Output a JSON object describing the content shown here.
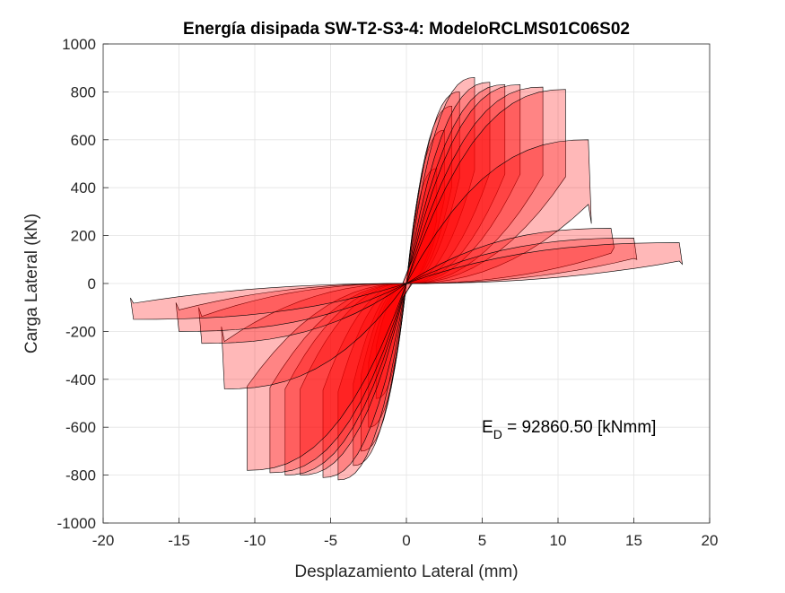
{
  "chart_data": {
    "type": "area",
    "title": "Energía disipada SW-T2-S3-4: ModeloRCLMS01C06S02",
    "xlabel": "Desplazamiento Lateral (mm)",
    "ylabel": "Carga Lateral (kN)",
    "xlim": [
      -20,
      20
    ],
    "ylim": [
      -1000,
      1000
    ],
    "xticks": [
      -20,
      -15,
      -10,
      -5,
      0,
      5,
      10,
      15,
      20
    ],
    "yticks": [
      -1000,
      -800,
      -600,
      -400,
      -200,
      0,
      200,
      400,
      600,
      800,
      1000
    ],
    "grid": true,
    "annotation": {
      "text_main": "E",
      "text_sub": "D",
      "text_rest": " = 92860.50 [kNmm]",
      "x": 5,
      "y": -600
    },
    "colors": {
      "fill": "#ff0000",
      "stroke": "#000000"
    },
    "series": [
      {
        "xmax": 2.0,
        "ymax": 480,
        "xmin": -2.0,
        "ymin": -480,
        "ptail": 0,
        "ntail": 0
      },
      {
        "xmax": 2.5,
        "ymax": 640,
        "xmin": -2.5,
        "ymin": -600,
        "ptail": 0,
        "ntail": 0
      },
      {
        "xmax": 3.0,
        "ymax": 740,
        "xmin": -3.0,
        "ymin": -700,
        "ptail": 0,
        "ntail": 0
      },
      {
        "xmax": 3.5,
        "ymax": 800,
        "xmin": -3.5,
        "ymin": -760,
        "ptail": 0,
        "ntail": 0
      },
      {
        "xmax": 4.5,
        "ymax": 860,
        "xmin": -4.5,
        "ymin": -820,
        "ptail": 0,
        "ntail": 0
      },
      {
        "xmax": 5.5,
        "ymax": 840,
        "xmin": -5.5,
        "ymin": -810,
        "ptail": 0,
        "ntail": 0
      },
      {
        "xmax": 6.5,
        "ymax": 830,
        "xmin": -7.0,
        "ymin": -800,
        "ptail": 0,
        "ntail": 0
      },
      {
        "xmax": 7.5,
        "ymax": 830,
        "xmin": -8.0,
        "ymin": -800,
        "ptail": 0,
        "ntail": 0
      },
      {
        "xmax": 9.0,
        "ymax": 820,
        "xmin": -9.0,
        "ymin": -790,
        "ptail": 0,
        "ntail": 0
      },
      {
        "xmax": 10.5,
        "ymax": 810,
        "xmin": -10.5,
        "ymin": -780,
        "ptail": 0,
        "ntail": 0
      },
      {
        "xmax": 12.0,
        "ymax": 600,
        "xmin": -12.0,
        "ymin": -440,
        "ptail": 250,
        "ntail": 180
      },
      {
        "xmax": 13.5,
        "ymax": 230,
        "xmin": -13.5,
        "ymin": -250,
        "ptail": 150,
        "ntail": 100
      },
      {
        "xmax": 15.0,
        "ymax": 190,
        "xmin": -15.0,
        "ymin": -200,
        "ptail": 100,
        "ntail": 80
      },
      {
        "xmax": 18.0,
        "ymax": 170,
        "xmin": -18.0,
        "ymin": -150,
        "ptail": 80,
        "ntail": 60
      }
    ]
  }
}
